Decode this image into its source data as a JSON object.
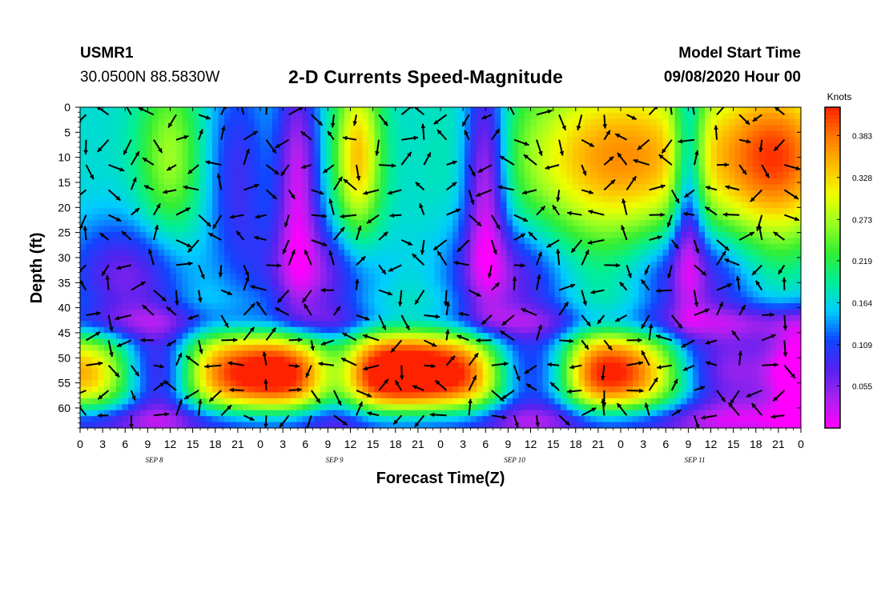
{
  "header": {
    "station_id": "USMR1",
    "coordinates": "30.0500N 88.5830W",
    "title": "2-D Currents Speed-Magnitude",
    "model_start_label": "Model Start Time",
    "model_start_value": "09/08/2020 Hour 00"
  },
  "chart_data": {
    "type": "heatmap",
    "title": "2-D Currents Speed-Magnitude",
    "xlabel": "Forecast Time(Z)",
    "ylabel": "Depth (ft)",
    "x_tick_labels": [
      "0",
      "3",
      "6",
      "9",
      "12",
      "15",
      "18",
      "21",
      "0",
      "3",
      "6",
      "9",
      "12",
      "15",
      "18",
      "21",
      "0",
      "3",
      "6",
      "9",
      "12",
      "15",
      "18",
      "21",
      "0",
      "3",
      "6",
      "9",
      "12",
      "15",
      "18",
      "21",
      "0"
    ],
    "x_hours_range": [
      0,
      96
    ],
    "day_labels": [
      {
        "label": "SEP 8",
        "hour": 12
      },
      {
        "label": "SEP 9",
        "hour": 36
      },
      {
        "label": "SEP 10",
        "hour": 60
      },
      {
        "label": "SEP 11",
        "hour": 84
      }
    ],
    "y_tick_labels": [
      "0",
      "5",
      "10",
      "15",
      "20",
      "25",
      "30",
      "35",
      "40",
      "45",
      "50",
      "55",
      "60"
    ],
    "y_range_ft": [
      0,
      64
    ],
    "y_inverted": true,
    "colorbar": {
      "unit_label": "Knots",
      "tick_labels": [
        "0.383",
        "0.328",
        "0.273",
        "0.219",
        "0.164",
        "0.109",
        "0.055"
      ],
      "range": [
        0,
        0.42
      ],
      "colors": [
        "#ff00ff",
        "#aa22ee",
        "#5522ee",
        "#1144ff",
        "#00ccff",
        "#00ee99",
        "#33ee33",
        "#99ff22",
        "#eeff00",
        "#ffbb00",
        "#ff7700",
        "#ff2200"
      ]
    },
    "speed_field_description_values": {
      "hours": [
        0,
        96
      ],
      "depth_ft": [
        0,
        64
      ],
      "speed_min": 0.0,
      "speed_max": 0.42
    }
  }
}
